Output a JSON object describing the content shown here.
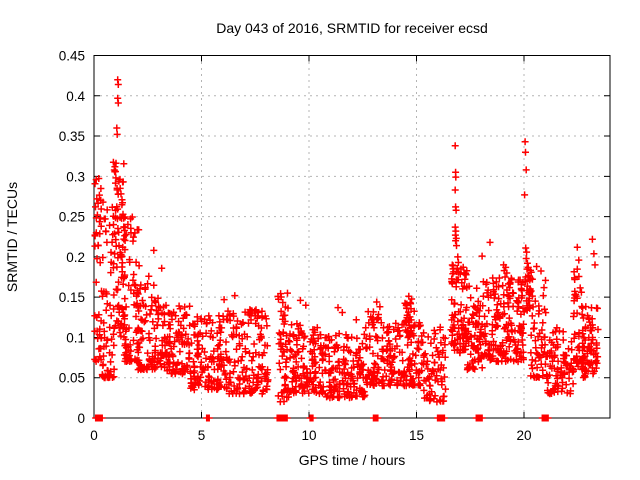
{
  "colors": {
    "background": "#ffffff",
    "marker": "#ff0000",
    "grid": "#b4b4b4",
    "axis": "#000000",
    "text": "#000000"
  },
  "chart_data": {
    "type": "scatter",
    "title": "Day 043 of 2016, SRMTID for receiver ecsd",
    "xlabel": "GPS time / hours",
    "ylabel": "SRMTID / TECUs",
    "xlim": [
      0,
      24
    ],
    "ylim": [
      0,
      0.45
    ],
    "xticks": [
      {
        "value": 0,
        "label": "0"
      },
      {
        "value": 5,
        "label": "5"
      },
      {
        "value": 10,
        "label": "10"
      },
      {
        "value": 15,
        "label": "15"
      },
      {
        "value": 20,
        "label": "20"
      }
    ],
    "yticks": [
      {
        "value": 0,
        "label": "0"
      },
      {
        "value": 0.05,
        "label": "0.05"
      },
      {
        "value": 0.1,
        "label": "0.1"
      },
      {
        "value": 0.15,
        "label": "0.15"
      },
      {
        "value": 0.2,
        "label": "0.2"
      },
      {
        "value": 0.25,
        "label": "0.25"
      },
      {
        "value": 0.3,
        "label": "0.3"
      },
      {
        "value": 0.35,
        "label": "0.35"
      },
      {
        "value": 0.4,
        "label": "0.4"
      },
      {
        "value": 0.45,
        "label": "0.45"
      }
    ],
    "grid": true,
    "legend": "none",
    "marker": {
      "shape": "plus",
      "color": "#ff0000",
      "size": 7
    },
    "seed": 43,
    "point_clusters": [
      {
        "x0": 0.02,
        "x1": 0.35,
        "y0": 0.07,
        "y1": 0.3,
        "n": 40,
        "k": 1.6
      },
      {
        "x0": 0.3,
        "x1": 0.95,
        "y0": 0.05,
        "y1": 0.27,
        "n": 60,
        "k": 2.2
      },
      {
        "x0": 0.9,
        "x1": 1.45,
        "y0": 0.1,
        "y1": 0.32,
        "n": 80,
        "k": 1.5
      },
      {
        "x0": 1.4,
        "x1": 2.1,
        "y0": 0.07,
        "y1": 0.25,
        "n": 70,
        "k": 2.0
      },
      {
        "x0": 2.0,
        "x1": 3.0,
        "y0": 0.06,
        "y1": 0.17,
        "n": 85,
        "k": 1.7
      },
      {
        "x0": 3.0,
        "x1": 4.5,
        "y0": 0.055,
        "y1": 0.14,
        "n": 115,
        "k": 1.5
      },
      {
        "x0": 4.5,
        "x1": 6.2,
        "y0": 0.035,
        "y1": 0.13,
        "n": 135,
        "k": 1.4
      },
      {
        "x0": 6.2,
        "x1": 8.1,
        "y0": 0.03,
        "y1": 0.135,
        "n": 150,
        "k": 1.4
      },
      {
        "x0": 8.55,
        "x1": 9.05,
        "y0": 0.02,
        "y1": 0.155,
        "n": 50,
        "k": 1.2
      },
      {
        "x0": 9.05,
        "x1": 10.5,
        "y0": 0.03,
        "y1": 0.12,
        "n": 115,
        "k": 1.5
      },
      {
        "x0": 10.5,
        "x1": 12.6,
        "y0": 0.025,
        "y1": 0.105,
        "n": 165,
        "k": 1.4
      },
      {
        "x0": 12.6,
        "x1": 13.45,
        "y0": 0.04,
        "y1": 0.135,
        "n": 65,
        "k": 1.5
      },
      {
        "x0": 13.4,
        "x1": 14.45,
        "y0": 0.04,
        "y1": 0.12,
        "n": 80,
        "k": 1.5
      },
      {
        "x0": 14.45,
        "x1": 14.9,
        "y0": 0.1,
        "y1": 0.152,
        "n": 30,
        "k": 1.1
      },
      {
        "x0": 14.5,
        "x1": 15.3,
        "y0": 0.04,
        "y1": 0.12,
        "n": 60,
        "k": 1.6
      },
      {
        "x0": 15.3,
        "x1": 16.35,
        "y0": 0.02,
        "y1": 0.115,
        "n": 70,
        "k": 1.4
      },
      {
        "x0": 16.6,
        "x1": 17.35,
        "y0": 0.08,
        "y1": 0.19,
        "n": 95,
        "k": 1.4
      },
      {
        "x0": 17.35,
        "x1": 18.1,
        "y0": 0.06,
        "y1": 0.165,
        "n": 70,
        "k": 1.5
      },
      {
        "x0": 18.1,
        "x1": 20.0,
        "y0": 0.07,
        "y1": 0.175,
        "n": 175,
        "k": 1.4
      },
      {
        "x0": 19.95,
        "x1": 20.35,
        "y0": 0.13,
        "y1": 0.185,
        "n": 30,
        "k": 1.1
      },
      {
        "x0": 20.3,
        "x1": 21.05,
        "y0": 0.05,
        "y1": 0.19,
        "n": 60,
        "k": 1.7
      },
      {
        "x0": 21.05,
        "x1": 22.3,
        "y0": 0.03,
        "y1": 0.115,
        "n": 90,
        "k": 1.5
      },
      {
        "x0": 22.3,
        "x1": 22.75,
        "y0": 0.06,
        "y1": 0.185,
        "n": 45,
        "k": 1.5
      },
      {
        "x0": 22.7,
        "x1": 23.45,
        "y0": 0.05,
        "y1": 0.14,
        "n": 70,
        "k": 1.4
      }
    ],
    "outliers": [
      [
        1.1,
        0.42
      ],
      [
        1.13,
        0.414
      ],
      [
        1.1,
        0.397
      ],
      [
        1.13,
        0.391
      ],
      [
        1.06,
        0.36
      ],
      [
        1.08,
        0.352
      ],
      [
        0.97,
        0.312
      ],
      [
        1.0,
        0.306
      ],
      [
        1.02,
        0.298
      ],
      [
        1.16,
        0.294
      ],
      [
        1.22,
        0.285
      ],
      [
        1.3,
        0.271
      ],
      [
        1.35,
        0.253
      ],
      [
        1.38,
        0.248
      ],
      [
        0.1,
        0.296
      ],
      [
        0.13,
        0.272
      ],
      [
        0.07,
        0.262
      ],
      [
        0.16,
        0.252
      ],
      [
        0.05,
        0.226
      ],
      [
        0.2,
        0.214
      ],
      [
        0.42,
        0.268
      ],
      [
        0.48,
        0.247
      ],
      [
        0.55,
        0.232
      ],
      [
        0.6,
        0.218
      ],
      [
        2.78,
        0.208
      ],
      [
        2.55,
        0.176
      ],
      [
        3.15,
        0.186
      ],
      [
        6.05,
        0.147
      ],
      [
        6.55,
        0.152
      ],
      [
        7.35,
        0.133
      ],
      [
        9.0,
        0.155
      ],
      [
        9.6,
        0.146
      ],
      [
        9.85,
        0.14
      ],
      [
        11.35,
        0.137
      ],
      [
        11.55,
        0.131
      ],
      [
        12.2,
        0.122
      ],
      [
        13.15,
        0.144
      ],
      [
        13.3,
        0.138
      ],
      [
        16.8,
        0.338
      ],
      [
        16.82,
        0.305
      ],
      [
        16.83,
        0.299
      ],
      [
        16.8,
        0.283
      ],
      [
        16.82,
        0.262
      ],
      [
        16.84,
        0.258
      ],
      [
        16.8,
        0.237
      ],
      [
        16.83,
        0.232
      ],
      [
        16.81,
        0.227
      ],
      [
        16.85,
        0.223
      ],
      [
        16.82,
        0.22
      ],
      [
        16.86,
        0.214
      ],
      [
        16.92,
        0.2
      ],
      [
        16.95,
        0.193
      ],
      [
        16.9,
        0.186
      ],
      [
        18.05,
        0.201
      ],
      [
        18.42,
        0.218
      ],
      [
        19.05,
        0.19
      ],
      [
        19.08,
        0.183
      ],
      [
        19.12,
        0.175
      ],
      [
        19.15,
        0.187
      ],
      [
        19.2,
        0.18
      ],
      [
        20.05,
        0.343
      ],
      [
        20.07,
        0.33
      ],
      [
        20.1,
        0.308
      ],
      [
        20.03,
        0.277
      ],
      [
        20.08,
        0.211
      ],
      [
        20.12,
        0.206
      ],
      [
        20.1,
        0.198
      ],
      [
        20.16,
        0.192
      ],
      [
        20.2,
        0.187
      ],
      [
        22.48,
        0.212
      ],
      [
        22.55,
        0.196
      ],
      [
        23.18,
        0.222
      ],
      [
        23.25,
        0.204
      ],
      [
        23.3,
        0.19
      ]
    ],
    "zero_markers": [
      {
        "x0": 0.08,
        "x1": 0.38,
        "n": 14
      },
      {
        "x0": 5.24,
        "x1": 5.36,
        "n": 4
      },
      {
        "x0": 8.52,
        "x1": 8.98,
        "n": 20
      },
      {
        "x0": 10.05,
        "x1": 10.18,
        "n": 4
      },
      {
        "x0": 13.0,
        "x1": 13.2,
        "n": 4
      },
      {
        "x0": 15.98,
        "x1": 16.3,
        "n": 12
      },
      {
        "x0": 17.78,
        "x1": 18.05,
        "n": 12
      },
      {
        "x0": 20.85,
        "x1": 21.12,
        "n": 12
      }
    ]
  }
}
